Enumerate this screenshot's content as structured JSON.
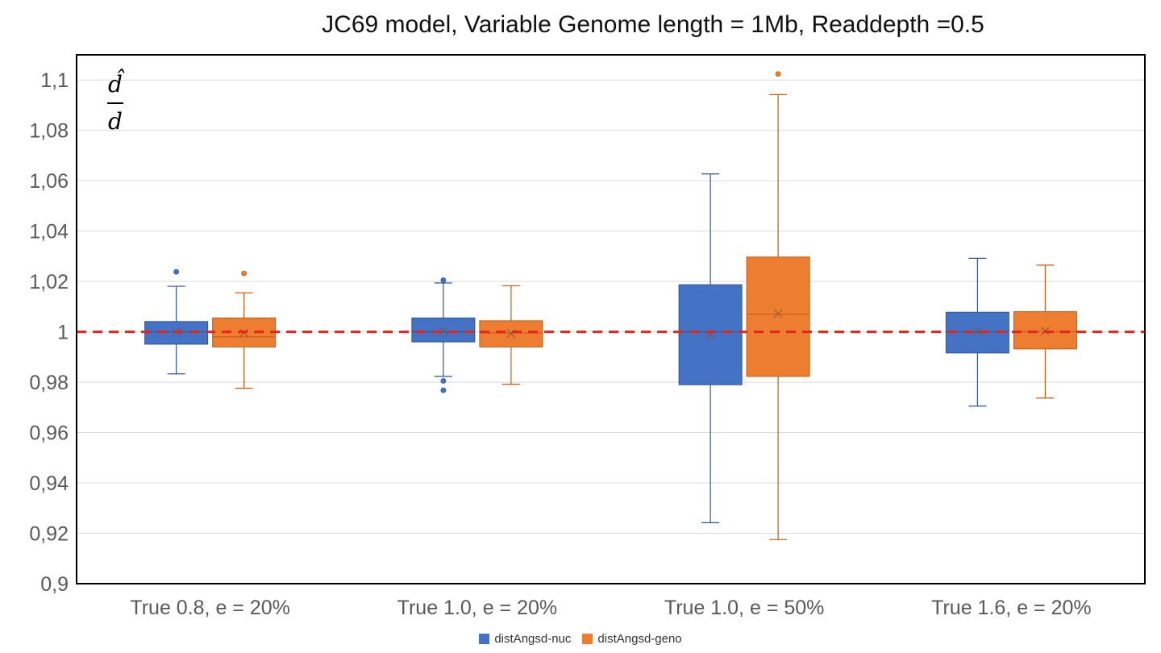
{
  "chart_data": {
    "type": "box",
    "title": "JC69 model, Variable Genome length = 1Mb, Readdepth =0.5",
    "ylabel_formula": {
      "numerator": "d̂",
      "denominator": "d"
    },
    "ylim": [
      0.9,
      1.11
    ],
    "yticks": [
      "0,9",
      "0,92",
      "0,94",
      "0,96",
      "0,98",
      "1",
      "1,02",
      "1,04",
      "1,06",
      "1,08",
      "1,1"
    ],
    "ytick_values": [
      0.9,
      0.92,
      0.94,
      0.96,
      0.98,
      1.0,
      1.02,
      1.04,
      1.06,
      1.08,
      1.1
    ],
    "categories": [
      "True 0.8, e = 20%",
      "True 1.0, e = 20%",
      "True 1.0, e = 50%",
      "True 1.6, e = 20%"
    ],
    "reference_line": {
      "y": 1.0,
      "color": "#e8231c",
      "style": "dashed"
    },
    "grid": true,
    "legend_position": "bottom",
    "series": [
      {
        "name": "distAngsd-nuc",
        "color": "#4472c4",
        "boxes": [
          {
            "min": 0.9833,
            "q1": 0.9951,
            "median": 1.0,
            "q3": 1.0041,
            "max": 1.0181,
            "mean": 1.0,
            "outliers": [
              1.0238
            ]
          },
          {
            "min": 0.9823,
            "q1": 0.996,
            "median": 1.0,
            "q3": 1.0055,
            "max": 1.0194,
            "mean": 1.0004,
            "outliers": [
              1.0205,
              0.9805,
              0.9768
            ]
          },
          {
            "min": 0.9242,
            "q1": 0.979,
            "median": 1.0,
            "q3": 1.0187,
            "max": 1.0627,
            "mean": 0.9987,
            "outliers": []
          },
          {
            "min": 0.9705,
            "q1": 0.9916,
            "median": 1.0,
            "q3": 1.0078,
            "max": 1.0292,
            "mean": 1.0003,
            "outliers": []
          }
        ]
      },
      {
        "name": "distAngsd-geno",
        "color": "#ed7d31",
        "boxes": [
          {
            "min": 0.9776,
            "q1": 0.994,
            "median": 0.998,
            "q3": 1.0055,
            "max": 1.0155,
            "mean": 0.9996,
            "outliers": [
              1.0232
            ]
          },
          {
            "min": 0.9792,
            "q1": 0.994,
            "median": 0.9995,
            "q3": 1.0044,
            "max": 1.0183,
            "mean": 0.9993,
            "outliers": []
          },
          {
            "min": 0.9175,
            "q1": 0.9823,
            "median": 1.007,
            "q3": 1.0297,
            "max": 1.0942,
            "mean": 1.0072,
            "outliers": [
              1.1024
            ]
          },
          {
            "min": 0.9737,
            "q1": 0.9932,
            "median": 1.0,
            "q3": 1.008,
            "max": 1.0265,
            "mean": 1.0003,
            "outliers": []
          }
        ]
      }
    ]
  }
}
